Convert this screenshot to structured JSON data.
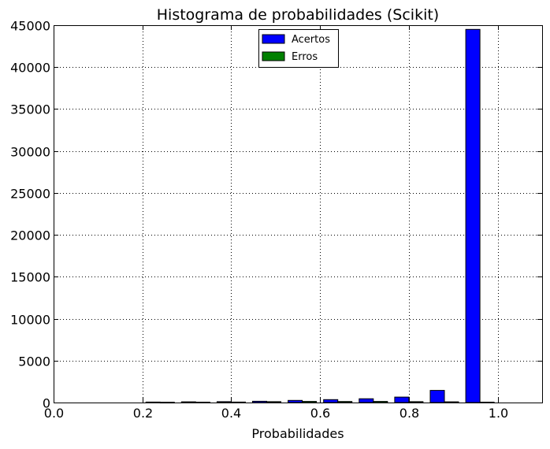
{
  "chart_data": {
    "type": "bar",
    "title": "Histograma de probabilidades (Scikit)",
    "xlabel": "Probabilidades",
    "ylabel": "",
    "xlim": [
      0.0,
      1.1
    ],
    "ylim": [
      0,
      45000
    ],
    "xticks": [
      "0.0",
      "0.2",
      "0.4",
      "0.6",
      "0.8",
      "1.0"
    ],
    "yticks": [
      "0",
      "5000",
      "10000",
      "15000",
      "20000",
      "25000",
      "30000",
      "35000",
      "40000",
      "45000"
    ],
    "grid": true,
    "legend_position": "top-center",
    "bin_width": 0.08,
    "bin_starts": [
      0.2,
      0.28,
      0.36,
      0.44,
      0.52,
      0.6,
      0.68,
      0.76,
      0.84,
      0.92
    ],
    "series": [
      {
        "name": "Acertos",
        "color": "#0000ff",
        "values": [
          60,
          80,
          100,
          150,
          250,
          350,
          450,
          650,
          1450,
          44500
        ]
      },
      {
        "name": "Erros",
        "color": "#008000",
        "values": [
          40,
          50,
          60,
          100,
          130,
          120,
          130,
          100,
          80,
          50
        ]
      }
    ]
  }
}
